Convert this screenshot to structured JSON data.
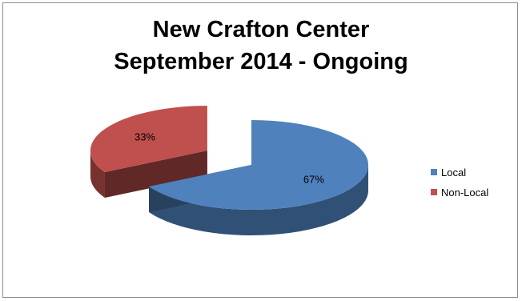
{
  "chart_data": {
    "type": "pie",
    "title": "New Crafton Center",
    "subtitle": "September 2014 - Ongoing",
    "categories": [
      "Local",
      "Non-Local"
    ],
    "values": [
      67,
      33
    ],
    "data_labels": [
      "67%",
      "33%"
    ],
    "colors": [
      "#4f81bd",
      "#c0504d"
    ],
    "exploded": [
      "Non-Local"
    ],
    "style": "3d",
    "legend": "right"
  }
}
